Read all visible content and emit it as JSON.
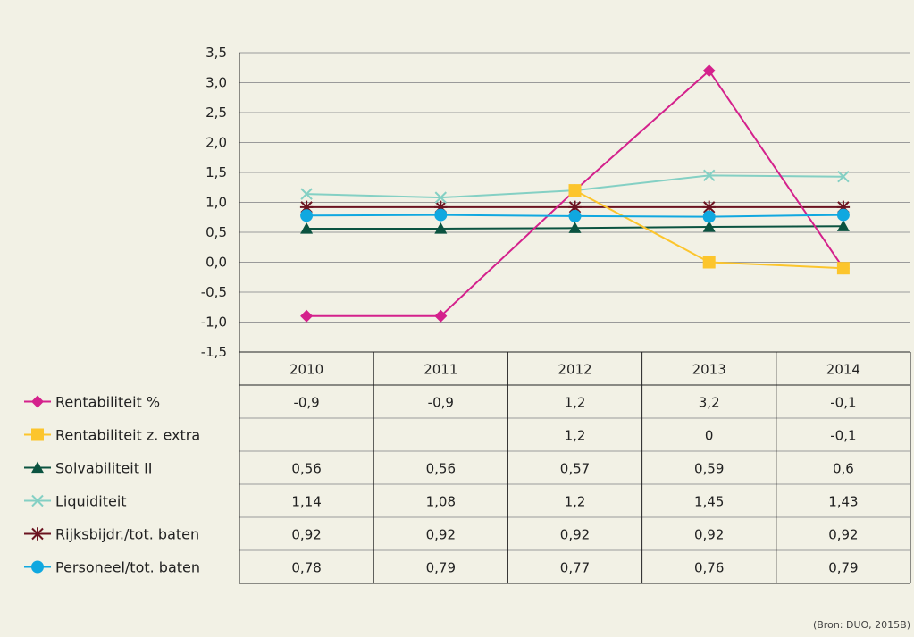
{
  "source": "(Bron: DUO, 2015B)",
  "chart_data": {
    "type": "line",
    "categories": [
      "2010",
      "2011",
      "2012",
      "2013",
      "2014"
    ],
    "y_ticks": [
      "3,5",
      "3,0",
      "2,5",
      "2,0",
      "1,5",
      "1,0",
      "0,5",
      "0,0",
      "-0,5",
      "-1,0",
      "-1,5"
    ],
    "ylim": [
      -1.5,
      3.5
    ],
    "grid": true,
    "legend": "left, as data table rows",
    "series": [
      {
        "name": "Rentabiliteit %",
        "color": "#d4218c",
        "marker": "diamond",
        "values": [
          -0.9,
          -0.9,
          1.2,
          3.2,
          -0.1
        ],
        "labels": [
          "-0,9",
          "-0,9",
          "1,2",
          "3,2",
          "-0,1"
        ]
      },
      {
        "name": "Rentabiliteit z. extra",
        "color": "#fcc52c",
        "marker": "square",
        "values": [
          null,
          null,
          1.2,
          0,
          -0.1
        ],
        "labels": [
          "",
          "",
          "1,2",
          "0",
          "-0,1"
        ]
      },
      {
        "name": "Solvabiliteit II",
        "color": "#0b5340",
        "marker": "triangle",
        "values": [
          0.56,
          0.56,
          0.57,
          0.59,
          0.6
        ],
        "labels": [
          "0,56",
          "0,56",
          "0,57",
          "0,59",
          "0,6"
        ]
      },
      {
        "name": "Liquiditeit",
        "color": "#84d0c4",
        "marker": "x",
        "values": [
          1.14,
          1.08,
          1.2,
          1.45,
          1.43
        ],
        "labels": [
          "1,14",
          "1,08",
          "1,2",
          "1,45",
          "1,43"
        ]
      },
      {
        "name": "Rijksbijdr./tot. baten",
        "color": "#6b1320",
        "marker": "star",
        "values": [
          0.92,
          0.92,
          0.92,
          0.92,
          0.92
        ],
        "labels": [
          "0,92",
          "0,92",
          "0,92",
          "0,92",
          "0,92"
        ]
      },
      {
        "name": "Personeel/tot. baten",
        "color": "#10a8e0",
        "marker": "circle",
        "values": [
          0.78,
          0.79,
          0.77,
          0.76,
          0.79
        ],
        "labels": [
          "0,78",
          "0,79",
          "0,77",
          "0,76",
          "0,79"
        ]
      }
    ]
  }
}
